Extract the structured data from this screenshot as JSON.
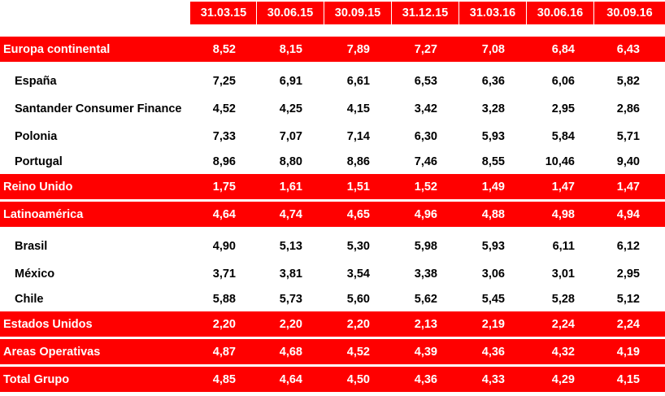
{
  "colors": {
    "accent_red": "#ff0000",
    "text_dark": "#000000",
    "text_light": "#ffffff"
  },
  "headers": [
    "31.03.15",
    "30.06.15",
    "30.09.15",
    "31.12.15",
    "31.03.16",
    "30.06.16",
    "30.09.16"
  ],
  "rows": [
    {
      "label": "Europa continental",
      "type": "region",
      "values": [
        "8,52",
        "8,15",
        "7,89",
        "7,27",
        "7,08",
        "6,84",
        "6,43"
      ]
    },
    {
      "label": "España",
      "type": "sub",
      "values": [
        "7,25",
        "6,91",
        "6,61",
        "6,53",
        "6,36",
        "6,06",
        "5,82"
      ]
    },
    {
      "label": "Santander Consumer Finance",
      "type": "sub",
      "values": [
        "4,52",
        "4,25",
        "4,15",
        "3,42",
        "3,28",
        "2,95",
        "2,86"
      ]
    },
    {
      "label": "Polonia",
      "type": "sub",
      "values": [
        "7,33",
        "7,07",
        "7,14",
        "6,30",
        "5,93",
        "5,84",
        "5,71"
      ]
    },
    {
      "label": "Portugal",
      "type": "sub",
      "values": [
        "8,96",
        "8,80",
        "8,86",
        "7,46",
        "8,55",
        "10,46",
        "9,40"
      ]
    },
    {
      "label": "Reino Unido",
      "type": "region",
      "values": [
        "1,75",
        "1,61",
        "1,51",
        "1,52",
        "1,49",
        "1,47",
        "1,47"
      ]
    },
    {
      "label": "Latinoamérica",
      "type": "region",
      "values": [
        "4,64",
        "4,74",
        "4,65",
        "4,96",
        "4,88",
        "4,98",
        "4,94"
      ]
    },
    {
      "label": "Brasil",
      "type": "sub",
      "values": [
        "4,90",
        "5,13",
        "5,30",
        "5,98",
        "5,93",
        "6,11",
        "6,12"
      ]
    },
    {
      "label": "México",
      "type": "sub",
      "values": [
        "3,71",
        "3,81",
        "3,54",
        "3,38",
        "3,06",
        "3,01",
        "2,95"
      ]
    },
    {
      "label": "Chile",
      "type": "sub",
      "values": [
        "5,88",
        "5,73",
        "5,60",
        "5,62",
        "5,45",
        "5,28",
        "5,12"
      ]
    },
    {
      "label": "Estados Unidos",
      "type": "region",
      "values": [
        "2,20",
        "2,20",
        "2,20",
        "2,13",
        "2,19",
        "2,24",
        "2,24"
      ]
    },
    {
      "label": "Areas Operativas",
      "type": "region",
      "values": [
        "4,87",
        "4,68",
        "4,52",
        "4,39",
        "4,36",
        "4,32",
        "4,19"
      ]
    },
    {
      "label": "Total Grupo",
      "type": "region",
      "values": [
        "4,85",
        "4,64",
        "4,50",
        "4,36",
        "4,33",
        "4,29",
        "4,15"
      ]
    }
  ]
}
